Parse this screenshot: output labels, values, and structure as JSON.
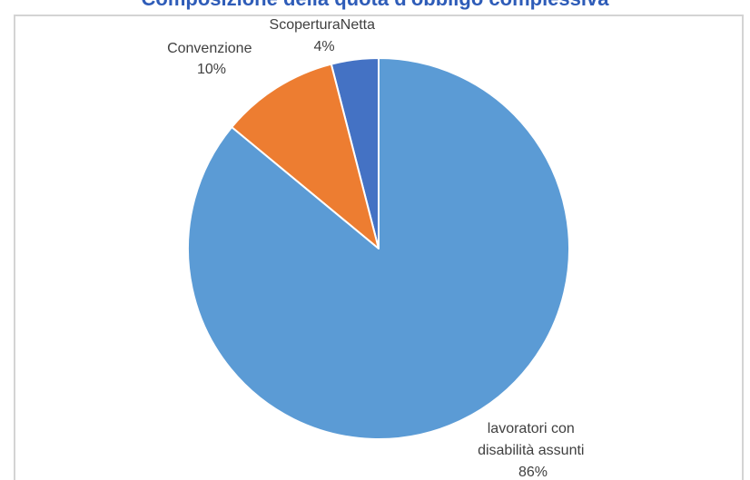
{
  "chart_data": {
    "type": "pie",
    "title": "Composizione della quota d'obbligo complessiva",
    "slices": [
      {
        "label": "ScoperturaNetta",
        "value": 4,
        "value_label": "4%",
        "color": "#4472c4"
      },
      {
        "label": "Convenzione",
        "value": 10,
        "value_label": "10%",
        "color": "#ed7d31"
      },
      {
        "label_lines": [
          "lavoratori con",
          "disabilità assunti"
        ],
        "value": 86,
        "value_label": "86%",
        "color": "#5b9bd5"
      }
    ],
    "start": "12 o'clock",
    "direction": "counter-clockwise",
    "legend": "none"
  }
}
